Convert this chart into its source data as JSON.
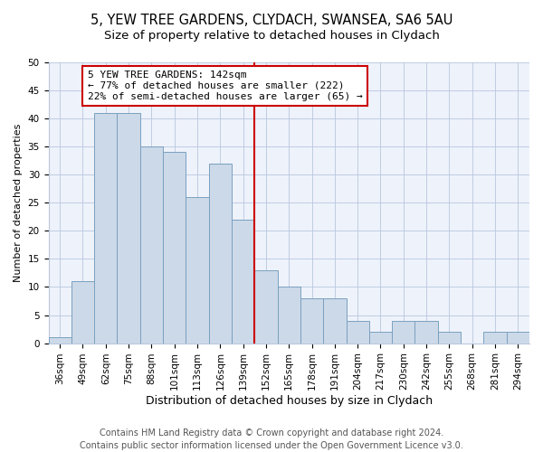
{
  "title1": "5, YEW TREE GARDENS, CLYDACH, SWANSEA, SA6 5AU",
  "title2": "Size of property relative to detached houses in Clydach",
  "xlabel": "Distribution of detached houses by size in Clydach",
  "ylabel": "Number of detached properties",
  "categories": [
    "36sqm",
    "49sqm",
    "62sqm",
    "75sqm",
    "88sqm",
    "101sqm",
    "113sqm",
    "126sqm",
    "139sqm",
    "152sqm",
    "165sqm",
    "178sqm",
    "191sqm",
    "204sqm",
    "217sqm",
    "230sqm",
    "242sqm",
    "255sqm",
    "268sqm",
    "281sqm",
    "294sqm"
  ],
  "values": [
    1,
    11,
    41,
    41,
    35,
    34,
    26,
    32,
    22,
    13,
    10,
    8,
    8,
    4,
    2,
    4,
    4,
    2,
    0,
    2,
    2
  ],
  "bar_color": "#ccd9e8",
  "bar_edge_color": "#7aa0c0",
  "vline_x_idx": 8.5,
  "vline_color": "#cc0000",
  "annotation_text": "5 YEW TREE GARDENS: 142sqm\n← 77% of detached houses are smaller (222)\n22% of semi-detached houses are larger (65) →",
  "annotation_box_color": "#ffffff",
  "annotation_box_edge": "#cc0000",
  "ylim": [
    0,
    50
  ],
  "yticks": [
    0,
    5,
    10,
    15,
    20,
    25,
    30,
    35,
    40,
    45,
    50
  ],
  "footer": "Contains HM Land Registry data © Crown copyright and database right 2024.\nContains public sector information licensed under the Open Government Licence v3.0.",
  "bg_color": "#eef2fb",
  "title1_fontsize": 10.5,
  "title2_fontsize": 9.5,
  "xlabel_fontsize": 9,
  "ylabel_fontsize": 8,
  "tick_fontsize": 7.5,
  "annotation_fontsize": 8,
  "footer_fontsize": 7
}
